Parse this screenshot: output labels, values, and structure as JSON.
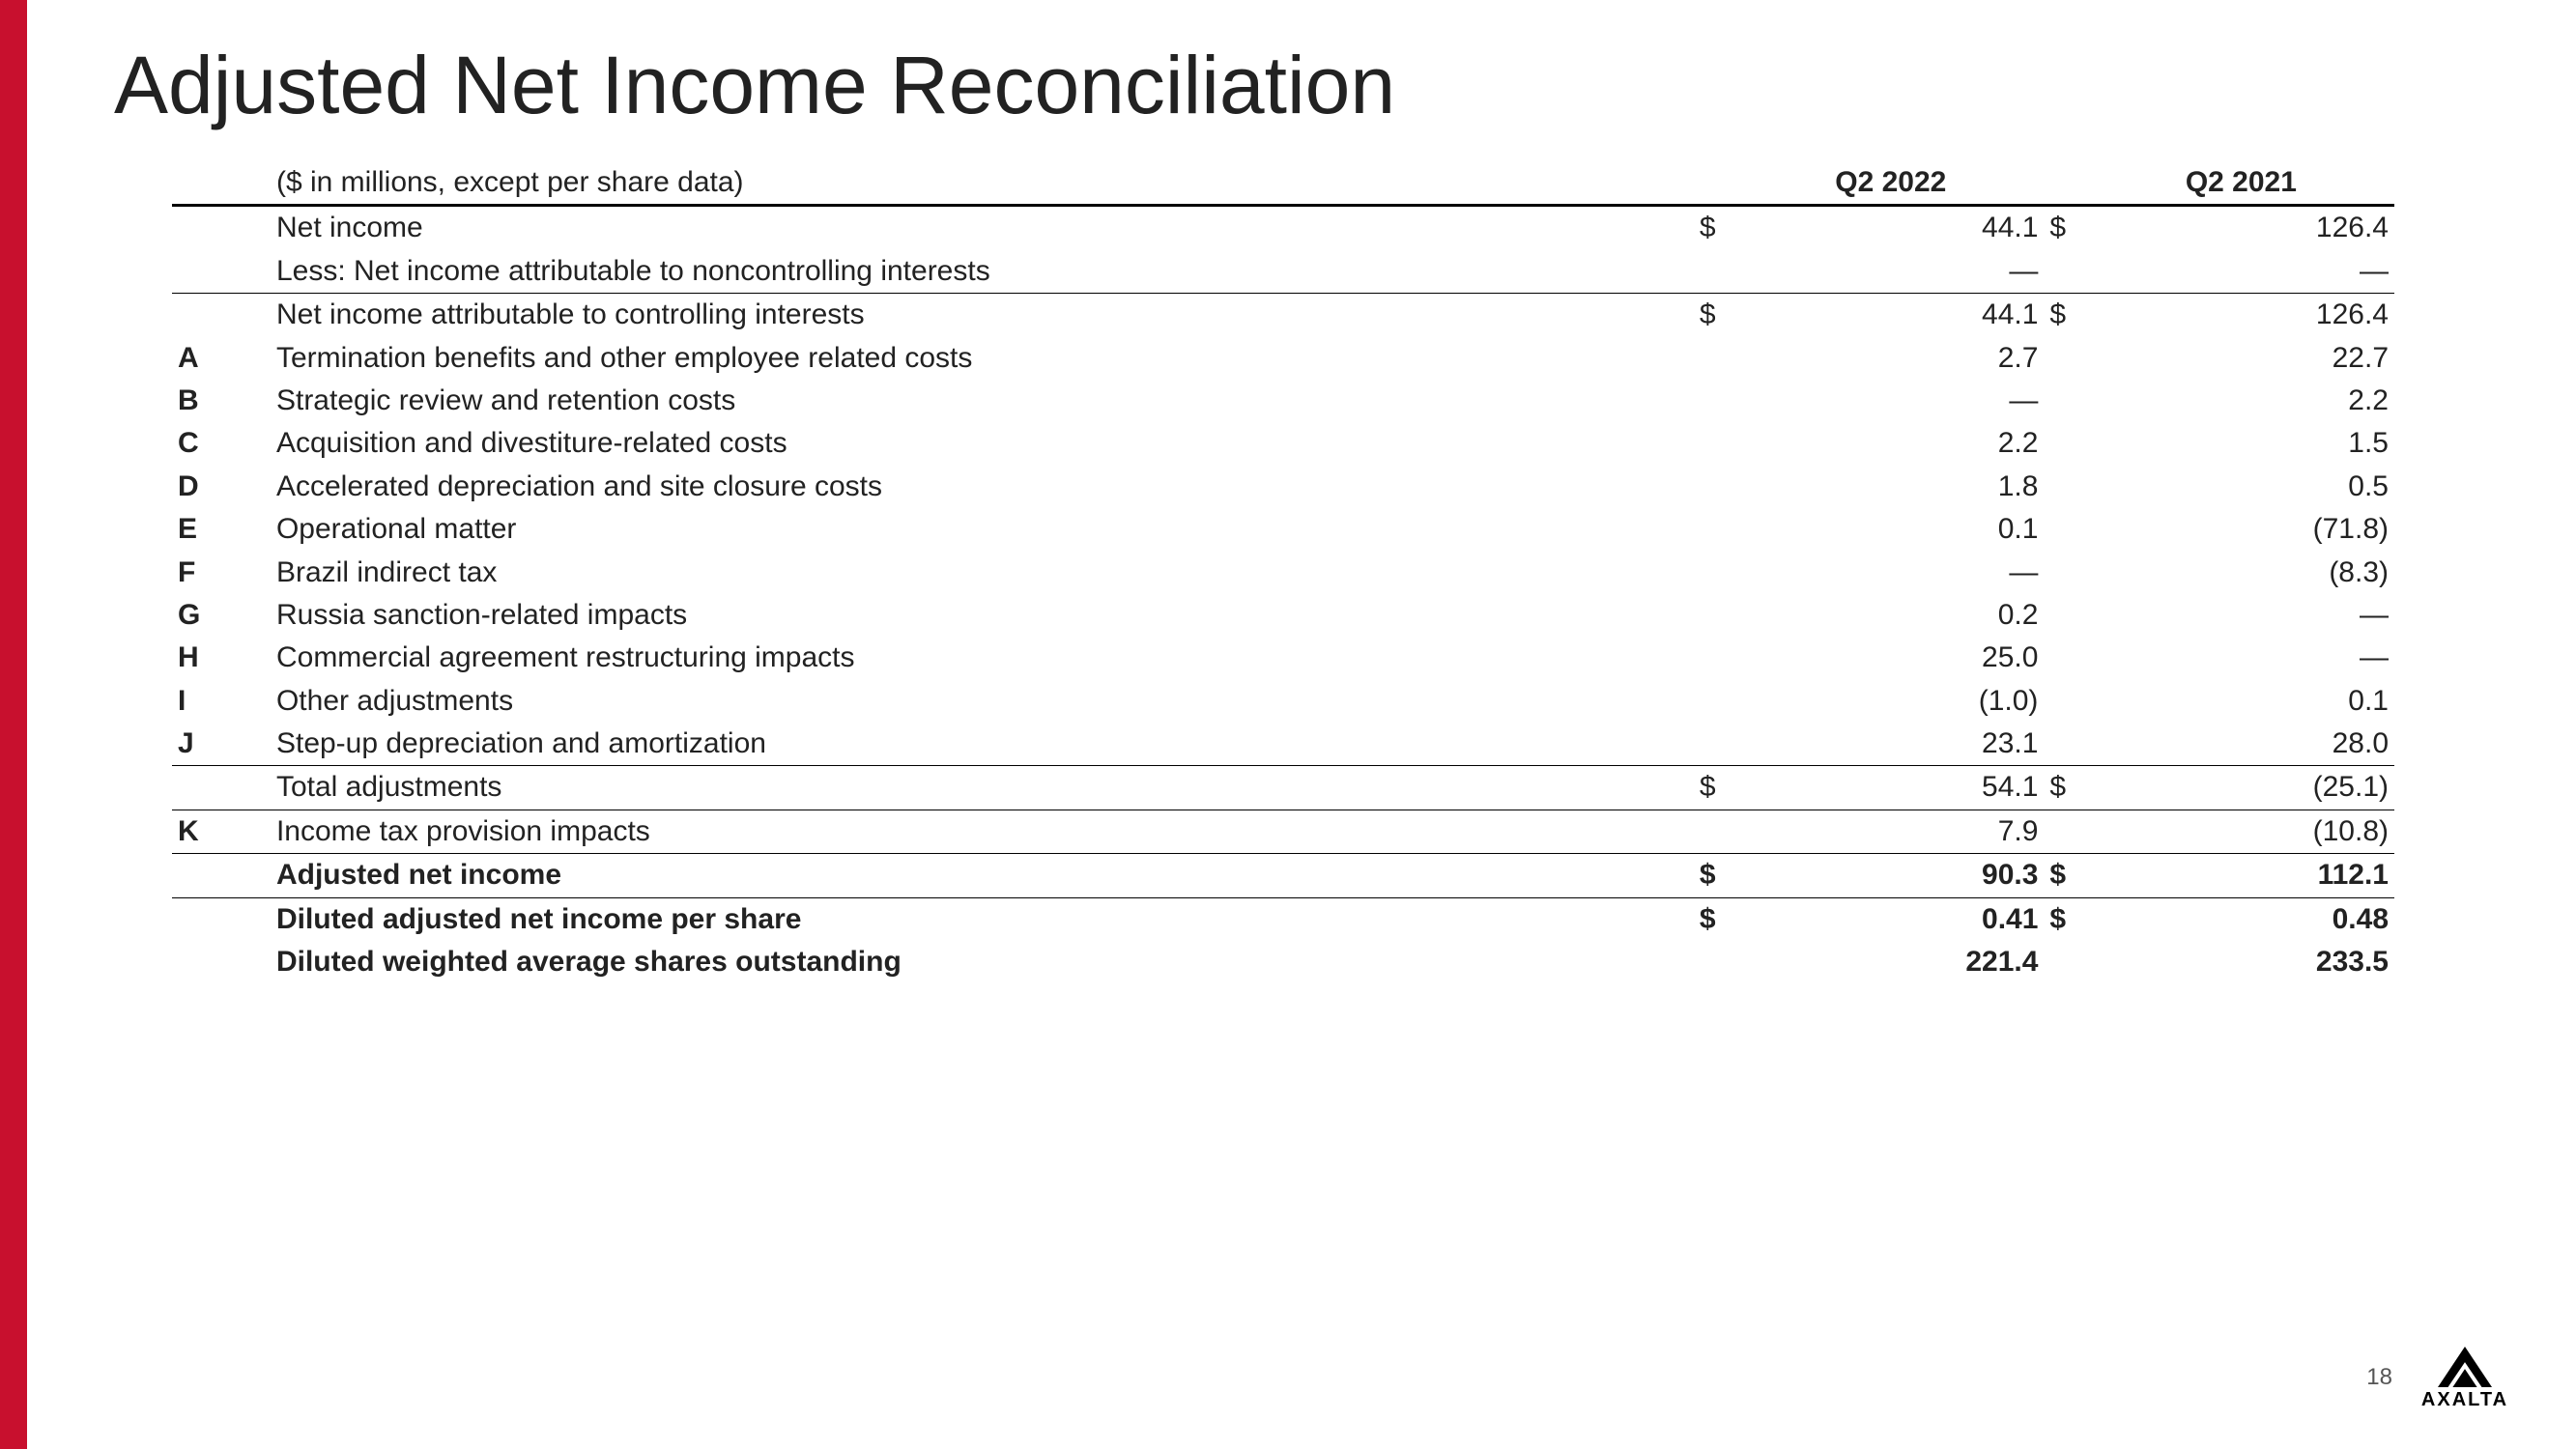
{
  "accent_color": "#c8102e",
  "title": "Adjusted Net Income Reconciliation",
  "table": {
    "unit_note": "($ in millions, except per share data)",
    "periods": [
      "Q2 2022",
      "Q2 2021"
    ],
    "currency": "$",
    "rows": [
      {
        "letter": "",
        "label": "Net income",
        "sym": true,
        "v1": "44.1",
        "v2": "126.4",
        "border": "",
        "bold": false
      },
      {
        "letter": "",
        "label": "Less: Net income attributable to noncontrolling interests",
        "sym": false,
        "v1": "—",
        "v2": "—",
        "border": "bottom",
        "bold": false
      },
      {
        "letter": "",
        "label": "Net income attributable to controlling interests",
        "sym": true,
        "v1": "44.1",
        "v2": "126.4",
        "border": "",
        "bold": false
      },
      {
        "letter": "A",
        "label": "Termination benefits and other employee related costs",
        "sym": false,
        "v1": "2.7",
        "v2": "22.7",
        "border": "",
        "bold": false
      },
      {
        "letter": "B",
        "label": "Strategic review and retention costs",
        "sym": false,
        "v1": "—",
        "v2": "2.2",
        "border": "",
        "bold": false
      },
      {
        "letter": "C",
        "label": "Acquisition and divestiture-related costs",
        "sym": false,
        "v1": "2.2",
        "v2": "1.5",
        "border": "",
        "bold": false
      },
      {
        "letter": "D",
        "label": "Accelerated depreciation and site closure costs",
        "sym": false,
        "v1": "1.8",
        "v2": "0.5",
        "border": "",
        "bold": false
      },
      {
        "letter": "E",
        "label": "Operational matter",
        "sym": false,
        "v1": "0.1",
        "v2": "(71.8)",
        "border": "",
        "bold": false
      },
      {
        "letter": "F",
        "label": "Brazil indirect tax",
        "sym": false,
        "v1": "—",
        "v2": "(8.3)",
        "border": "",
        "bold": false
      },
      {
        "letter": "G",
        "label": "Russia sanction-related impacts",
        "sym": false,
        "v1": "0.2",
        "v2": "—",
        "border": "",
        "bold": false
      },
      {
        "letter": "H",
        "label": "Commercial agreement restructuring impacts",
        "sym": false,
        "v1": "25.0",
        "v2": "—",
        "border": "",
        "bold": false
      },
      {
        "letter": "I",
        "label": "Other adjustments",
        "sym": false,
        "v1": "(1.0)",
        "v2": "0.1",
        "border": "",
        "bold": false
      },
      {
        "letter": "J",
        "label": "Step-up depreciation and amortization",
        "sym": false,
        "v1": "23.1",
        "v2": "28.0",
        "border": "bottom",
        "bold": false
      },
      {
        "letter": "",
        "label": "Total adjustments",
        "sym": true,
        "v1": "54.1",
        "v2": "(25.1)",
        "border": "bottom",
        "bold": false
      },
      {
        "letter": "K",
        "label": "Income tax provision impacts",
        "sym": false,
        "v1": "7.9",
        "v2": "(10.8)",
        "border": "bottom",
        "bold": false
      },
      {
        "letter": "",
        "label": "Adjusted net income",
        "sym": true,
        "v1": "90.3",
        "v2": "112.1",
        "border": "bottom",
        "bold": true
      },
      {
        "letter": "",
        "label": "Diluted adjusted net income per share",
        "sym": true,
        "v1": "0.41",
        "v2": "0.48",
        "border": "",
        "bold": true
      },
      {
        "letter": "",
        "label": "Diluted weighted average shares outstanding",
        "sym": false,
        "v1": "221.4",
        "v2": "233.5",
        "border": "",
        "bold": true
      }
    ]
  },
  "page_number": "18",
  "logo_text": "AXALTA"
}
